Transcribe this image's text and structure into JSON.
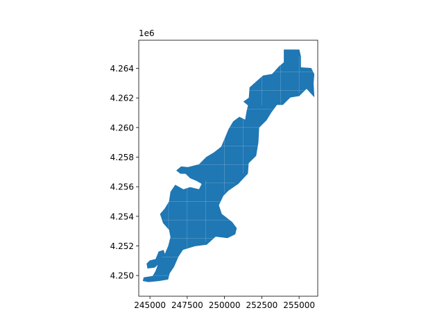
{
  "chart_data": {
    "type": "map",
    "title": "",
    "xlabel": "",
    "ylabel": "",
    "y_offset_text": "1e6",
    "xlim": [
      244250,
      256250
    ],
    "ylim": [
      4248600,
      4265900
    ],
    "xticks": [
      {
        "value": 245000,
        "label": "245000"
      },
      {
        "value": 247500,
        "label": "247500"
      },
      {
        "value": 250000,
        "label": "250000"
      },
      {
        "value": 252500,
        "label": "252500"
      },
      {
        "value": 255000,
        "label": "255000"
      }
    ],
    "yticks": [
      {
        "value": 4250000,
        "label": "4.250"
      },
      {
        "value": 4252000,
        "label": "4.252"
      },
      {
        "value": 4254000,
        "label": "4.254"
      },
      {
        "value": 4256000,
        "label": "4.256"
      },
      {
        "value": 4258000,
        "label": "4.258"
      },
      {
        "value": 4260000,
        "label": "4.260"
      },
      {
        "value": 4262000,
        "label": "4.262"
      },
      {
        "value": 4264000,
        "label": "4.264"
      }
    ],
    "fill_color": "#1f77b4",
    "edge_color": "#ffffff",
    "grid": false,
    "legend": "none",
    "shape": {
      "outline": [
        [
          254000,
          4265250
        ],
        [
          255000,
          4265250
        ],
        [
          255100,
          4264800
        ],
        [
          255100,
          4264050
        ],
        [
          255800,
          4264000
        ],
        [
          256000,
          4263600
        ],
        [
          255950,
          4263000
        ],
        [
          256000,
          4262100
        ],
        [
          255500,
          4262650
        ],
        [
          255000,
          4262150
        ],
        [
          254400,
          4262050
        ],
        [
          253900,
          4261550
        ],
        [
          253500,
          4261550
        ],
        [
          253100,
          4261000
        ],
        [
          252800,
          4260500
        ],
        [
          252300,
          4260000
        ],
        [
          252250,
          4259000
        ],
        [
          252100,
          4258100
        ],
        [
          251600,
          4257600
        ],
        [
          251550,
          4256900
        ],
        [
          250900,
          4256200
        ],
        [
          250250,
          4255750
        ],
        [
          249900,
          4255400
        ],
        [
          249600,
          4254750
        ],
        [
          249800,
          4254150
        ],
        [
          250500,
          4253600
        ],
        [
          250800,
          4253200
        ],
        [
          250700,
          4252800
        ],
        [
          250200,
          4252550
        ],
        [
          249400,
          4252650
        ],
        [
          248800,
          4252100
        ],
        [
          248000,
          4252000
        ],
        [
          247200,
          4251750
        ],
        [
          246900,
          4251300
        ],
        [
          246600,
          4250600
        ],
        [
          246300,
          4250150
        ],
        [
          246200,
          4249750
        ],
        [
          245600,
          4249650
        ],
        [
          244900,
          4249580
        ],
        [
          244550,
          4249650
        ],
        [
          244600,
          4249850
        ],
        [
          245200,
          4249950
        ],
        [
          245400,
          4250300
        ],
        [
          245600,
          4250850
        ],
        [
          246000,
          4251400
        ],
        [
          245900,
          4251700
        ],
        [
          245600,
          4251600
        ],
        [
          245400,
          4251100
        ],
        [
          245000,
          4251000
        ],
        [
          244800,
          4250800
        ],
        [
          244850,
          4250500
        ],
        [
          245300,
          4250550
        ],
        [
          245700,
          4250900
        ],
        [
          246000,
          4251400
        ],
        [
          246250,
          4252000
        ],
        [
          246400,
          4252600
        ],
        [
          246300,
          4253100
        ],
        [
          245900,
          4253550
        ],
        [
          245700,
          4254150
        ],
        [
          246000,
          4254500
        ],
        [
          246300,
          4255000
        ],
        [
          246400,
          4255650
        ],
        [
          246700,
          4256100
        ],
        [
          247250,
          4255800
        ],
        [
          247700,
          4255950
        ],
        [
          248300,
          4255800
        ],
        [
          248500,
          4256200
        ],
        [
          248150,
          4256400
        ],
        [
          247700,
          4256600
        ],
        [
          247400,
          4256900
        ],
        [
          247050,
          4256900
        ],
        [
          246800,
          4257100
        ],
        [
          247100,
          4257350
        ],
        [
          247550,
          4257300
        ],
        [
          248300,
          4257500
        ],
        [
          248800,
          4258000
        ],
        [
          249300,
          4258300
        ],
        [
          249800,
          4258700
        ],
        [
          250050,
          4259300
        ],
        [
          250300,
          4259900
        ],
        [
          250600,
          4260400
        ],
        [
          251000,
          4260700
        ],
        [
          251400,
          4260500
        ],
        [
          251500,
          4261100
        ],
        [
          251600,
          4261500
        ],
        [
          251300,
          4261750
        ],
        [
          251650,
          4262000
        ],
        [
          251700,
          4262700
        ],
        [
          252200,
          4263150
        ],
        [
          252600,
          4263500
        ],
        [
          253200,
          4263600
        ],
        [
          253650,
          4264100
        ],
        [
          254000,
          4264400
        ]
      ],
      "cells": {
        "vertical_lines": [
          {
            "x": 246250,
            "y_range": [
              4252200,
              4255600
            ]
          },
          {
            "x": 247500,
            "y_range": [
              4251500,
              4256200
            ]
          },
          {
            "x": 248750,
            "y_range": [
              4252300,
              4256400
            ]
          },
          {
            "x": 250000,
            "y_range": [
              4255600,
              4260400
            ]
          },
          {
            "x": 251250,
            "y_range": [
              4256900,
              4260800
            ]
          },
          {
            "x": 252500,
            "y_range": [
              4261500,
              4263700
            ]
          },
          {
            "x": 253750,
            "y_range": [
              4261600,
              4264500
            ]
          },
          {
            "x": 255000,
            "y_range": [
              4262300,
              4264800
            ]
          }
        ],
        "horizontal_lines": [
          {
            "y": 4250000,
            "x_range": [
              245300,
              246400
            ]
          },
          {
            "y": 4251250,
            "x_range": [
              245800,
              246900
            ]
          },
          {
            "y": 4252500,
            "x_range": [
              246300,
              249400
            ]
          },
          {
            "y": 4253750,
            "x_range": [
              245900,
              250700
            ]
          },
          {
            "y": 4255000,
            "x_range": [
              245900,
              249700
            ]
          },
          {
            "y": 4256250,
            "x_range": [
              248700,
              250700
            ]
          },
          {
            "y": 4257500,
            "x_range": [
              248200,
              251700
            ]
          },
          {
            "y": 4258750,
            "x_range": [
              249800,
              252200
            ]
          },
          {
            "y": 4260000,
            "x_range": [
              250300,
              252300
            ]
          },
          {
            "y": 4261250,
            "x_range": [
              251500,
              253200
            ]
          },
          {
            "y": 4262500,
            "x_range": [
              251700,
              255300
            ]
          },
          {
            "y": 4263750,
            "x_range": [
              253300,
              256000
            ]
          }
        ]
      }
    }
  }
}
